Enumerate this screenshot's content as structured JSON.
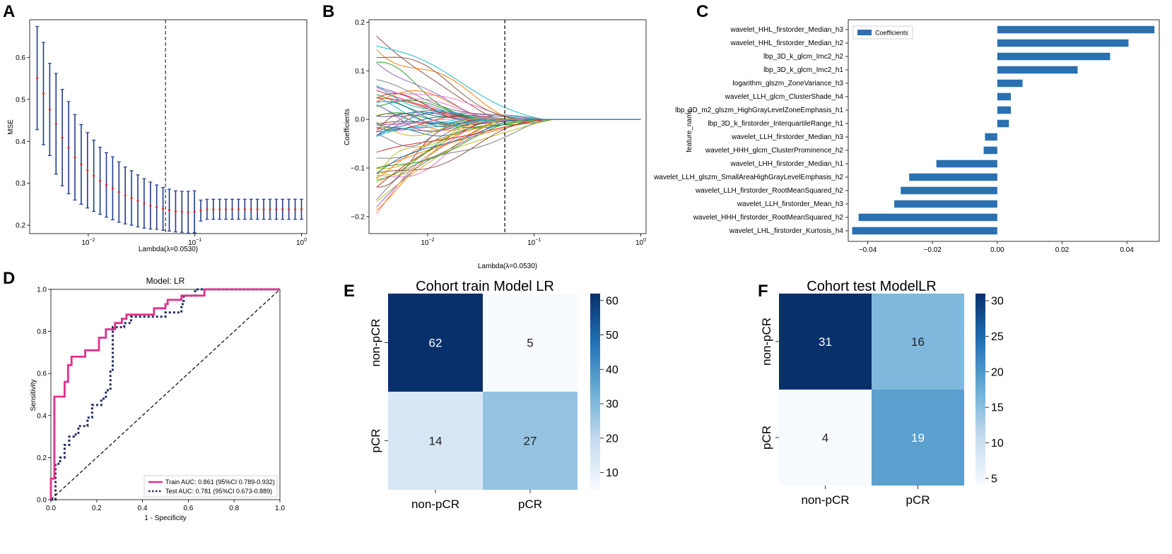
{
  "panels": {
    "A": "A",
    "B": "B",
    "C": "C",
    "D": "D",
    "E": "E",
    "F": "F"
  },
  "chart_data": [
    {
      "id": "A",
      "type": "scatter",
      "title": "",
      "xlabel": "Lambda(λ=0.0530)",
      "ylabel": "MSE",
      "xscale": "log",
      "xlim_log10": [
        -2.55,
        0.05
      ],
      "ylim": [
        0.18,
        0.69
      ],
      "xticks": [
        {
          "v": -2,
          "base": "10",
          "exp": "−2"
        },
        {
          "v": -1,
          "base": "10",
          "exp": "−1"
        },
        {
          "v": 0,
          "base": "10",
          "exp": "0"
        }
      ],
      "yticks": [
        "0.2",
        "0.3",
        "0.4",
        "0.5",
        "0.6"
      ],
      "vline_lambda": 0.053,
      "log_lambda_start": -2.48,
      "log_lambda_end": 0.0,
      "mean": [
        0.551,
        0.514,
        0.476,
        0.442,
        0.409,
        0.385,
        0.362,
        0.345,
        0.331,
        0.318,
        0.306,
        0.296,
        0.288,
        0.279,
        0.271,
        0.265,
        0.258,
        0.252,
        0.247,
        0.243,
        0.239,
        0.236,
        0.233,
        0.232,
        0.231,
        0.232,
        0.235,
        0.238,
        0.238,
        0.238,
        0.238,
        0.238,
        0.238,
        0.238,
        0.238,
        0.238,
        0.238,
        0.238,
        0.238,
        0.238,
        0.238,
        0.238,
        0.238
      ],
      "err": [
        0.123,
        0.122,
        0.11,
        0.12,
        0.115,
        0.11,
        0.102,
        0.095,
        0.09,
        0.085,
        0.08,
        0.077,
        0.075,
        0.072,
        0.068,
        0.065,
        0.062,
        0.059,
        0.056,
        0.053,
        0.051,
        0.05,
        0.049,
        0.049,
        0.05,
        0.05,
        0.025,
        0.024,
        0.024,
        0.024,
        0.024,
        0.024,
        0.024,
        0.024,
        0.024,
        0.024,
        0.024,
        0.024,
        0.024,
        0.024,
        0.024,
        0.024,
        0.024
      ],
      "colors": {
        "err": "#1f3d8a",
        "mean": "#e03030"
      }
    },
    {
      "id": "B",
      "type": "line",
      "xlabel": "Lambda(λ=0.0530)",
      "ylabel": "Coefficients",
      "xscale": "log",
      "xlim_log10": [
        -2.55,
        0.05
      ],
      "ylim": [
        -0.235,
        0.205
      ],
      "xticks": [
        {
          "v": -2,
          "base": "10",
          "exp": "−2"
        },
        {
          "v": -1,
          "base": "10",
          "exp": "−1"
        },
        {
          "v": 0,
          "base": "10",
          "exp": "0"
        }
      ],
      "yticks": [
        "−0.2",
        "−0.1",
        "0.0",
        "0.1",
        "0.2"
      ],
      "vline_lambda": 0.053,
      "n_paths": 60,
      "path_start_log": -2.48,
      "path_end_log": 0.0,
      "description_seed": 7
    },
    {
      "id": "C",
      "type": "bar",
      "orientation": "horizontal",
      "ylabel": "feature_name",
      "legend": "Coefficients",
      "color": "#2b70b0",
      "xlim": [
        -0.046,
        0.05
      ],
      "xticks": [
        "−0.04",
        "−0.02",
        "0.00",
        "0.02",
        "0.04"
      ],
      "categories": [
        "wavelet_HHL_firstorder_Median_h3",
        "wavelet_HHL_firstorder_Median_h2",
        "lbp_3D_k_glcm_Imc2_h2",
        "lbp_3D_k_glcm_Imc2_h1",
        "logarithm_glszm_ZoneVariance_h3",
        "wavelet_LLH_glcm_ClusterShade_h4",
        "lbp_3D_m2_glszm_HighGrayLevelZoneEmphasis_h1",
        "lbp_3D_k_firstorder_InterquartileRange_h1",
        "wavelet_LLH_firstorder_Median_h3",
        "wavelet_HHH_glcm_ClusterProminence_h2",
        "wavelet_LHH_firstorder_Median_h1",
        "wavelet_LLH_glszm_SmallAreaHighGrayLevelEmphasis_h2",
        "wavelet_LLH_firstorder_RootMeanSquared_h2",
        "wavelet_LLH_firstorder_Mean_h3",
        "wavelet_HHH_firstorder_RootMeanSquared_h2",
        "wavelet_LHL_firstorder_Kurtosis_h4"
      ],
      "values": [
        0.0485,
        0.0405,
        0.0348,
        0.0248,
        0.0078,
        0.0042,
        0.0042,
        0.0036,
        -0.0038,
        -0.0042,
        -0.0188,
        -0.0272,
        -0.0298,
        -0.0318,
        -0.0428,
        -0.0448
      ]
    },
    {
      "id": "D",
      "type": "line",
      "title": "Model: LR",
      "xlabel": "1 - Specificity",
      "ylabel": "Sensitivity",
      "xlim": [
        0,
        1
      ],
      "ylim": [
        0,
        1
      ],
      "ticks": [
        "0.0",
        "0.2",
        "0.4",
        "0.6",
        "0.8",
        "1.0"
      ],
      "series": [
        {
          "name": "Train AUC: 0.861 (95%CI 0.789-0.932)",
          "color": "#e0318a",
          "x": [
            0,
            0,
            0.015,
            0.015,
            0.06,
            0.06,
            0.075,
            0.075,
            0.09,
            0.09,
            0.15,
            0.15,
            0.21,
            0.21,
            0.24,
            0.24,
            0.28,
            0.28,
            0.31,
            0.31,
            0.33,
            0.33,
            0.45,
            0.45,
            0.5,
            0.5,
            0.51,
            0.51,
            0.57,
            0.57,
            0.67,
            0.67,
            1.0
          ],
          "y": [
            0,
            0.1,
            0.1,
            0.49,
            0.49,
            0.56,
            0.56,
            0.64,
            0.64,
            0.68,
            0.68,
            0.71,
            0.71,
            0.77,
            0.77,
            0.81,
            0.81,
            0.84,
            0.84,
            0.86,
            0.86,
            0.88,
            0.88,
            0.91,
            0.91,
            0.93,
            0.93,
            0.95,
            0.95,
            0.97,
            0.97,
            1.0,
            1.0
          ]
        },
        {
          "name": "Test AUC: 0.781 (95%CI 0.673-0.889)",
          "color": "#232d5e",
          "x": [
            0,
            0.02,
            0.02,
            0.04,
            0.04,
            0.06,
            0.06,
            0.08,
            0.08,
            0.1,
            0.1,
            0.12,
            0.12,
            0.16,
            0.16,
            0.18,
            0.18,
            0.22,
            0.22,
            0.24,
            0.24,
            0.26,
            0.26,
            0.27,
            0.27,
            0.32,
            0.32,
            0.35,
            0.35,
            0.5,
            0.5,
            0.57,
            0.57,
            0.58,
            0.58,
            0.63,
            0.63,
            1.0
          ],
          "y": [
            0,
            0,
            0.17,
            0.17,
            0.2,
            0.2,
            0.26,
            0.26,
            0.3,
            0.3,
            0.31,
            0.31,
            0.35,
            0.35,
            0.39,
            0.39,
            0.45,
            0.45,
            0.48,
            0.48,
            0.52,
            0.52,
            0.61,
            0.61,
            0.82,
            0.82,
            0.84,
            0.84,
            0.87,
            0.87,
            0.89,
            0.89,
            0.93,
            0.93,
            0.97,
            0.97,
            1.0,
            1.0
          ]
        },
        {
          "name": "diagonal",
          "color": "#000000",
          "x": [
            0,
            1
          ],
          "y": [
            0,
            1
          ]
        }
      ]
    },
    {
      "id": "E",
      "type": "heatmap",
      "title": "Cohort train Model LR",
      "rows": [
        "non-pCR",
        "pCR"
      ],
      "cols": [
        "non-pCR",
        "pCR"
      ],
      "values": [
        [
          62,
          5
        ],
        [
          14,
          27
        ]
      ],
      "vmin": 5,
      "vmax": 62,
      "colorbar_ticks": [
        "60",
        "50",
        "40",
        "30",
        "20",
        "10"
      ],
      "colorbar_tick_values": [
        60,
        50,
        40,
        30,
        20,
        10
      ]
    },
    {
      "id": "F",
      "type": "heatmap",
      "title": "Cohort test ModelLR",
      "rows": [
        "non-pCR",
        "pCR"
      ],
      "cols": [
        "non-pCR",
        "pCR"
      ],
      "values": [
        [
          31,
          16
        ],
        [
          4,
          19
        ]
      ],
      "vmin": 4,
      "vmax": 31,
      "colorbar_ticks": [
        "30",
        "25",
        "20",
        "15",
        "10",
        "5"
      ],
      "colorbar_tick_values": [
        30,
        25,
        20,
        15,
        10,
        5
      ]
    }
  ]
}
